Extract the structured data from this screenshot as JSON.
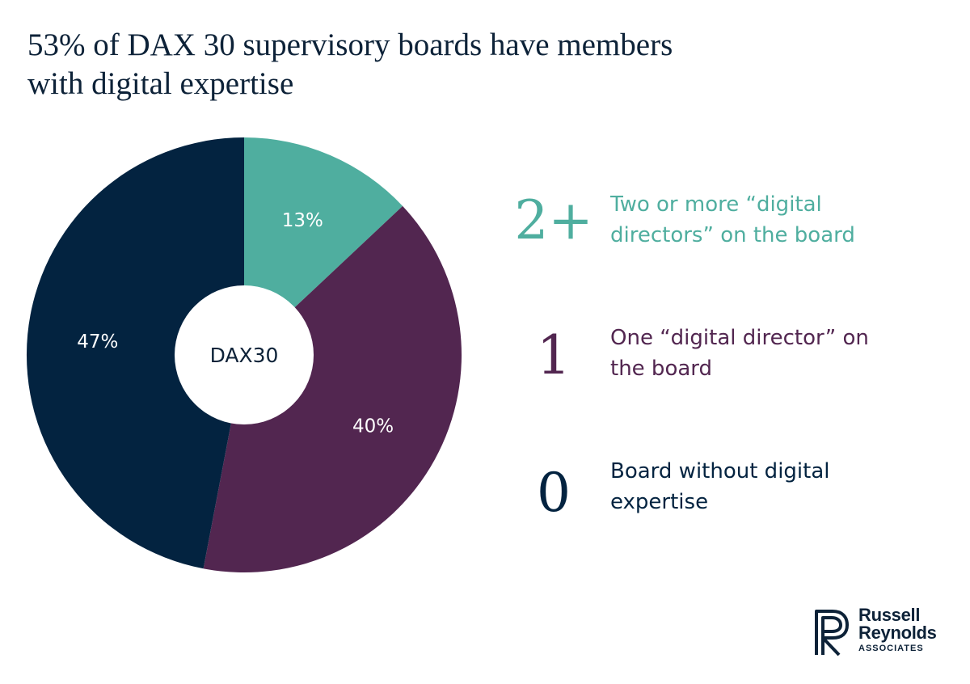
{
  "title": {
    "line1": "53% of DAX 30 supervisory boards have members",
    "line2": "with digital expertise"
  },
  "chart_data": {
    "type": "pie",
    "center_label": "DAX30",
    "slices": [
      {
        "key": "two_plus",
        "value": 13,
        "label": "13%",
        "color": "#4fae9f"
      },
      {
        "key": "one",
        "value": 40,
        "label": "40%",
        "color": "#522650"
      },
      {
        "key": "zero",
        "value": 47,
        "label": "47%",
        "color": "#032340"
      }
    ]
  },
  "legend": [
    {
      "number": "2+",
      "text": "Two or more “digital directors” on the board",
      "color": "#4fae9f"
    },
    {
      "number": "1",
      "text": "One “digital director” on the board",
      "color": "#522650"
    },
    {
      "number": "0",
      "text": "Board without digital expertise",
      "color": "#032340"
    }
  ],
  "logo": {
    "name": "russell-reynolds-associates-logo",
    "line1": "Russell",
    "line2": "Reynolds",
    "line3": "ASSOCIATES",
    "color": "#0d2238"
  }
}
